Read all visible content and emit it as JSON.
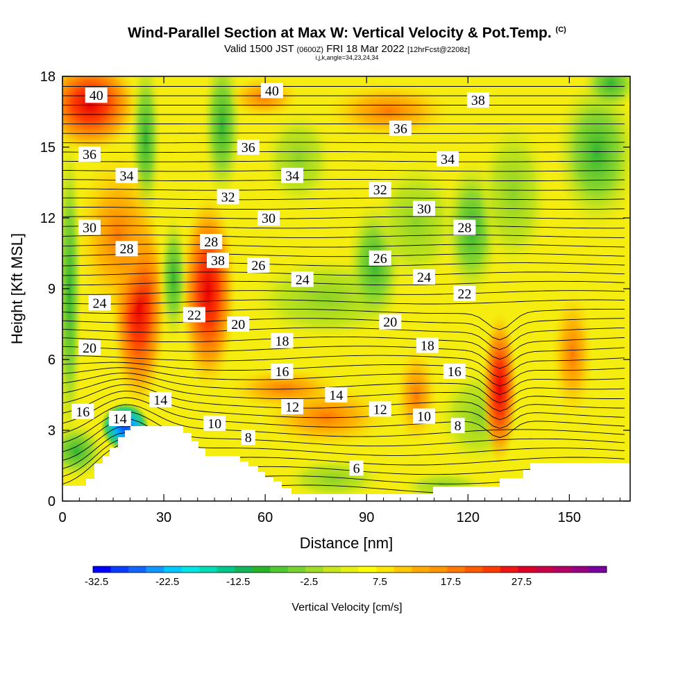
{
  "title": "Wind-Parallel Section at Max W: Vertical Velocity & Pot.Temp.",
  "title_mark": "(C)",
  "subtitle_main": "Valid 1500 JST",
  "subtitle_utc": "(0600Z)",
  "subtitle_date": "FRI 18 Mar 2022",
  "subtitle_run": "[12hrFcst@2208z]",
  "subline": "i,j,k,angle=34,23,24,34",
  "chart_data": {
    "type": "heatmap",
    "xlabel": "Distance [nm]",
    "ylabel": "Height [Kft MSL]",
    "xlim": [
      0,
      168
    ],
    "ylim": [
      0,
      18
    ],
    "x_ticks": [
      0,
      30,
      60,
      90,
      120,
      150
    ],
    "y_ticks": [
      0,
      3,
      6,
      9,
      12,
      15,
      18
    ],
    "colorbar": {
      "title": "Vertical Velocity [cm/s]",
      "tick_labels": [
        "-32.5",
        "-22.5",
        "-12.5",
        "-2.5",
        "7.5",
        "17.5",
        "27.5"
      ],
      "colors": [
        "#0000ff",
        "#0a3cff",
        "#1464ff",
        "#1496ff",
        "#00c8ff",
        "#00e6e6",
        "#00dcb4",
        "#00c88c",
        "#14b45a",
        "#28b428",
        "#50c832",
        "#78d232",
        "#a0dc28",
        "#c8e61e",
        "#e6f014",
        "#ffff00",
        "#ffe600",
        "#ffc800",
        "#ffaa00",
        "#ff9600",
        "#ff7800",
        "#ff5a00",
        "#ff3c00",
        "#f01414",
        "#dc0028",
        "#c80046",
        "#b40064",
        "#960082",
        "#7800a0"
      ]
    },
    "contour_field": "Potential Temperature",
    "contour_labels": [
      {
        "x": 10,
        "y": 17.2,
        "text": "40"
      },
      {
        "x": 8,
        "y": 14.7,
        "text": "36"
      },
      {
        "x": 19,
        "y": 13.8,
        "text": "34"
      },
      {
        "x": 8,
        "y": 11.6,
        "text": "30"
      },
      {
        "x": 19,
        "y": 10.7,
        "text": "28"
      },
      {
        "x": 11,
        "y": 8.4,
        "text": "24"
      },
      {
        "x": 8,
        "y": 6.5,
        "text": "20"
      },
      {
        "x": 6,
        "y": 3.8,
        "text": "16"
      },
      {
        "x": 17,
        "y": 3.5,
        "text": "14"
      },
      {
        "x": 29,
        "y": 4.3,
        "text": "14"
      },
      {
        "x": 39,
        "y": 7.9,
        "text": "22"
      },
      {
        "x": 46,
        "y": 10.2,
        "text": "38"
      },
      {
        "x": 44,
        "y": 11.0,
        "text": "28"
      },
      {
        "x": 49,
        "y": 12.9,
        "text": "32"
      },
      {
        "x": 55,
        "y": 15.0,
        "text": "36"
      },
      {
        "x": 62,
        "y": 17.4,
        "text": "40"
      },
      {
        "x": 61,
        "y": 12.0,
        "text": "30"
      },
      {
        "x": 58,
        "y": 10.0,
        "text": "26"
      },
      {
        "x": 52,
        "y": 7.5,
        "text": "20"
      },
      {
        "x": 45,
        "y": 3.3,
        "text": "10"
      },
      {
        "x": 55,
        "y": 2.7,
        "text": "8"
      },
      {
        "x": 68,
        "y": 13.8,
        "text": "34"
      },
      {
        "x": 71,
        "y": 9.4,
        "text": "24"
      },
      {
        "x": 65,
        "y": 6.8,
        "text": "18"
      },
      {
        "x": 65,
        "y": 5.5,
        "text": "16"
      },
      {
        "x": 68,
        "y": 4.0,
        "text": "12"
      },
      {
        "x": 81,
        "y": 4.5,
        "text": "14"
      },
      {
        "x": 87,
        "y": 1.4,
        "text": "6"
      },
      {
        "x": 94,
        "y": 13.2,
        "text": "32"
      },
      {
        "x": 100,
        "y": 15.8,
        "text": "36"
      },
      {
        "x": 94,
        "y": 10.3,
        "text": "26"
      },
      {
        "x": 97,
        "y": 7.6,
        "text": "20"
      },
      {
        "x": 94,
        "y": 3.9,
        "text": "12"
      },
      {
        "x": 107,
        "y": 12.4,
        "text": "30"
      },
      {
        "x": 107,
        "y": 9.5,
        "text": "24"
      },
      {
        "x": 108,
        "y": 6.6,
        "text": "18"
      },
      {
        "x": 107,
        "y": 3.6,
        "text": "10"
      },
      {
        "x": 114,
        "y": 14.5,
        "text": "34"
      },
      {
        "x": 123,
        "y": 17.0,
        "text": "38"
      },
      {
        "x": 119,
        "y": 11.6,
        "text": "28"
      },
      {
        "x": 119,
        "y": 8.8,
        "text": "22"
      },
      {
        "x": 116,
        "y": 5.5,
        "text": "16"
      },
      {
        "x": 117,
        "y": 3.2,
        "text": "8"
      }
    ]
  }
}
